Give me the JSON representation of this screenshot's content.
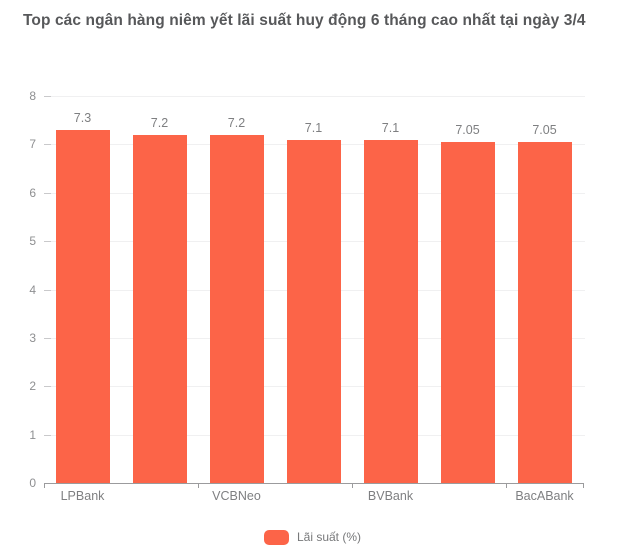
{
  "chart_data": {
    "type": "bar",
    "title": "Top các ngân hàng niêm yết lãi suất huy động 6 tháng cao nhất tại ngày 3/4",
    "categories": [
      "LPBank",
      "",
      "VCBNeo",
      "",
      "BVBank",
      "",
      "BacABank"
    ],
    "visible_category_labels": [
      "LPBank",
      "VCBNeo",
      "BVBank",
      "BacABank"
    ],
    "values": [
      7.3,
      7.2,
      7.2,
      7.1,
      7.1,
      7.05,
      7.05
    ],
    "bar_value_labels": [
      "7.3",
      "7.2",
      "7.2",
      "7.1",
      "7.1",
      "7.05",
      "7.05"
    ],
    "xlabel": "",
    "ylabel": "",
    "ylim": [
      0,
      8
    ],
    "yticks": [
      0,
      1,
      2,
      3,
      4,
      5,
      6,
      7,
      8
    ],
    "grid": true,
    "legend": {
      "label": "Lãi suất (%)",
      "position": "bottom"
    },
    "bar_color": "#FC6448",
    "title_color": "#57585A",
    "axis_text_color": "#7E7F81"
  }
}
